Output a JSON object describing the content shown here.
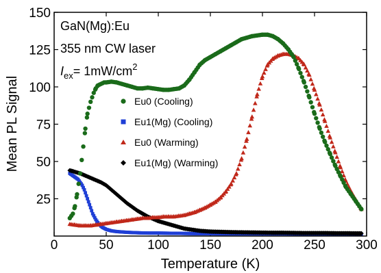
{
  "chart_data": {
    "type": "scatter",
    "xlabel": "Temperature (K)",
    "ylabel": "Mean PL Signal",
    "xlim": [
      0,
      300
    ],
    "ylim": [
      0,
      150
    ],
    "xticks": [
      0,
      50,
      100,
      150,
      200,
      250,
      300
    ],
    "yticks": [
      25,
      50,
      75,
      100,
      125,
      150
    ],
    "grid": false,
    "legend_position": "center",
    "annotations": {
      "line1": "GaN(Mg):Eu",
      "line2": "355 nm CW laser",
      "line3_main": "I",
      "line3_sub": "ex",
      "line3_value": "= 1mW/cm",
      "line3_sup": "2"
    },
    "series": [
      {
        "name": "Eu0 (Cooling)",
        "color": "#1a6b1a",
        "marker": "circle",
        "x": [
          15,
          18,
          20,
          22,
          25,
          28,
          30,
          32,
          35,
          38,
          40,
          42,
          45,
          48,
          50,
          55,
          60,
          65,
          70,
          75,
          80,
          85,
          90,
          95,
          100,
          105,
          110,
          115,
          120,
          125,
          130,
          135,
          140,
          145,
          150,
          155,
          160,
          165,
          170,
          175,
          180,
          185,
          190,
          195,
          200,
          205,
          210,
          215,
          220,
          225,
          230,
          235,
          240,
          245,
          250,
          255,
          260,
          265,
          270,
          275,
          280,
          285,
          290,
          295
        ],
        "y": [
          12,
          15,
          20,
          28,
          42,
          60,
          72,
          82,
          90,
          96,
          99,
          101,
          102,
          103,
          103,
          103.5,
          103,
          102,
          101,
          100,
          99,
          99,
          99.5,
          99,
          98.5,
          98,
          98,
          98.5,
          99,
          101,
          105,
          110,
          115,
          118,
          120,
          122,
          124,
          126,
          128,
          130,
          132,
          133,
          134,
          134.5,
          135,
          135,
          134,
          132,
          129,
          125,
          120,
          112,
          103,
          93,
          82,
          72,
          63,
          55,
          47,
          40,
          33,
          28,
          23,
          18
        ]
      },
      {
        "name": "Eu1(Mg) (Cooling)",
        "color": "#1f3fd6",
        "marker": "square",
        "x": [
          15,
          17,
          19,
          21,
          23,
          25,
          27,
          29,
          31,
          33,
          35,
          37,
          40,
          43,
          46,
          50,
          55,
          60,
          70,
          80,
          90,
          100,
          120,
          140,
          160,
          180,
          200,
          220,
          240,
          260,
          280,
          295
        ],
        "y": [
          42,
          41,
          40,
          39,
          38,
          36,
          34,
          31,
          27,
          23,
          19,
          15,
          11,
          8,
          6,
          4.5,
          3.5,
          3,
          2.5,
          2.2,
          2,
          2,
          1.8,
          1.6,
          1.5,
          1.5,
          1.5,
          1.5,
          1.4,
          1.4,
          1.3,
          1.3
        ]
      },
      {
        "name": "Eu0 (Warming)",
        "color": "#c0281a",
        "marker": "triangle",
        "x": [
          15,
          20,
          25,
          30,
          35,
          40,
          45,
          50,
          55,
          60,
          65,
          70,
          75,
          80,
          85,
          90,
          95,
          100,
          105,
          110,
          115,
          120,
          125,
          130,
          135,
          140,
          145,
          150,
          155,
          160,
          165,
          170,
          175,
          180,
          185,
          190,
          195,
          200,
          205,
          210,
          215,
          220,
          225,
          230,
          235,
          240,
          245,
          250,
          255,
          260,
          265,
          270,
          275,
          280,
          285,
          290,
          295
        ],
        "y": [
          8,
          7.5,
          7,
          7,
          7,
          7.5,
          8,
          8.5,
          9,
          9.5,
          10,
          10.5,
          11,
          11.5,
          12,
          12,
          12.5,
          12.5,
          13,
          13,
          13,
          13.5,
          14,
          15,
          16,
          17.5,
          19,
          21,
          23,
          26,
          30,
          35,
          42,
          52,
          65,
          80,
          95,
          107,
          115,
          119,
          121,
          122,
          122,
          121,
          119,
          115,
          108,
          98,
          88,
          77,
          66,
          56,
          46,
          37,
          30,
          24,
          18
        ]
      },
      {
        "name": "Eu1(Mg) (Warming)",
        "color": "#000000",
        "marker": "diamond",
        "x": [
          15,
          18,
          20,
          25,
          30,
          35,
          40,
          45,
          50,
          55,
          60,
          65,
          70,
          75,
          80,
          85,
          90,
          95,
          100,
          105,
          110,
          115,
          120,
          125,
          130,
          135,
          140,
          150,
          160,
          170,
          180,
          190,
          200,
          210,
          220,
          230,
          240,
          250,
          260,
          270,
          280,
          290,
          295
        ],
        "y": [
          44,
          43.5,
          43,
          42,
          40.5,
          39,
          37.5,
          36,
          34,
          31,
          28,
          25,
          22,
          19.5,
          17,
          15,
          13,
          11.5,
          10,
          9,
          8,
          7,
          6,
          5,
          4.5,
          4,
          3.5,
          3,
          2.8,
          2.6,
          2.5,
          2.4,
          2.3,
          2.2,
          2.2,
          2.1,
          2,
          2,
          2,
          1.9,
          1.9,
          1.8,
          1.8
        ]
      }
    ]
  }
}
